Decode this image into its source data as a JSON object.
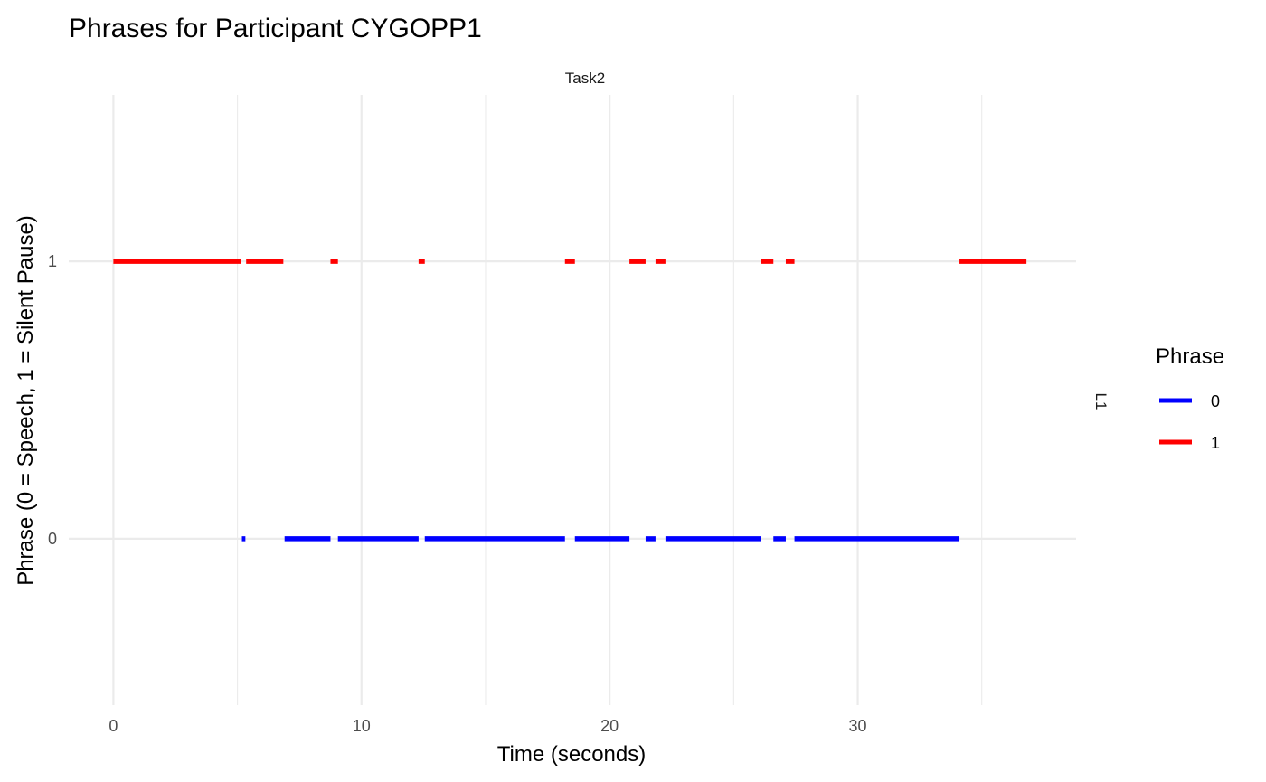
{
  "chart_data": {
    "type": "line",
    "title": "Phrases for Participant CYGOPP1",
    "facet_column": "Task2",
    "facet_row": "L1",
    "xlabel": "Time (seconds)",
    "ylabel": "Phrase (0 = Speech, 1 = Silent Pause)",
    "xlim": [
      -1.8,
      38.8
    ],
    "ylim": [
      -0.6,
      1.6
    ],
    "x_ticks": [
      0,
      10,
      20,
      30
    ],
    "y_ticks": [
      0,
      1
    ],
    "grid": true,
    "legend": {
      "title": "Phrase",
      "position": "right",
      "entries": [
        {
          "label": "0",
          "color": "#0000ff"
        },
        {
          "label": "1",
          "color": "#ff0000"
        }
      ]
    },
    "series": [
      {
        "name": "0",
        "color": "#0000ff",
        "y": 0,
        "segments": [
          [
            5.18,
            5.32
          ],
          [
            6.9,
            8.75
          ],
          [
            9.05,
            12.3
          ],
          [
            12.55,
            18.2
          ],
          [
            18.6,
            20.8
          ],
          [
            21.45,
            21.85
          ],
          [
            22.25,
            26.1
          ],
          [
            26.6,
            27.1
          ],
          [
            27.45,
            34.1
          ]
        ]
      },
      {
        "name": "1",
        "color": "#ff0000",
        "y": 1,
        "segments": [
          [
            0.0,
            5.15
          ],
          [
            5.35,
            6.85
          ],
          [
            8.75,
            9.05
          ],
          [
            12.3,
            12.55
          ],
          [
            18.2,
            18.6
          ],
          [
            20.8,
            21.45
          ],
          [
            21.85,
            22.25
          ],
          [
            26.1,
            26.6
          ],
          [
            27.1,
            27.45
          ],
          [
            34.1,
            36.8
          ]
        ]
      }
    ]
  }
}
